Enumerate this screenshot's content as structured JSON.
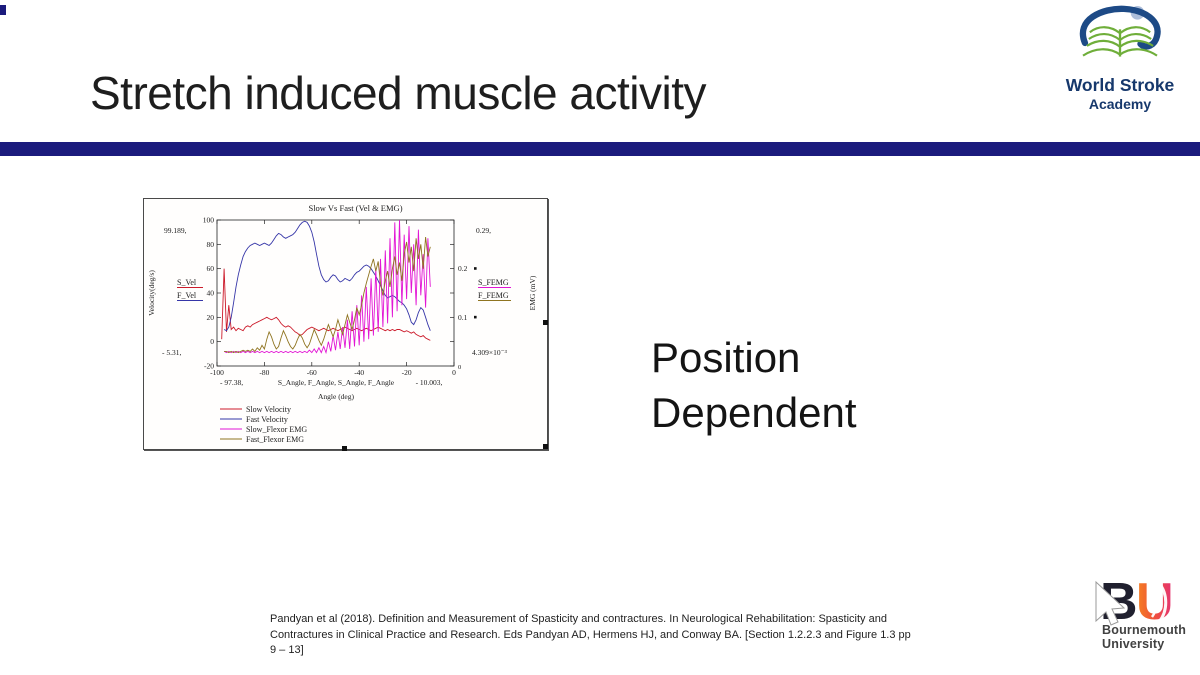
{
  "slide": {
    "title": "Stretch induced muscle activity",
    "body_line1": "Position",
    "body_line2": "Dependent",
    "citation_lines": [
      "Pandyan et al (2018). Definition and Measurement of Spasticity and contractures. In Neurological Rehabilitation: Spasticity and",
      "Contractures in Clinical Practice and Research. Eds Pandyan AD, Hermens HJ, and Conway BA. [Section 1.2.2.3 and Figure 1.3 pp",
      "9 – 13]"
    ],
    "accent_bar_color": "#1b1b7d"
  },
  "logos": {
    "world_stroke_academy": {
      "line1": "World Stroke",
      "line2": "Academy",
      "navy": "#16386c",
      "green": "#6fae3a"
    },
    "bournemouth": {
      "monogram_b": "B",
      "monogram_u": "U",
      "line1": "Bournemouth",
      "line2": "University"
    }
  },
  "chart_data": {
    "type": "line",
    "title": "Slow Vs Fast (Vel & EMG)",
    "xlabel": "Angle (deg)",
    "x_sublabel": "S_Angle, F_Angle, S_Angle, F_Angle",
    "x_annotations": [
      "- 97.38,",
      "- 10.003,"
    ],
    "ylabel_left": "Velocity(deg/s)",
    "ylabel_right": "EMG (mV)",
    "left_axis_traces": [
      "S_Vel",
      "F_Vel"
    ],
    "right_axis_traces": [
      "S_FEMG",
      "F_FEMG"
    ],
    "left_annotations": [
      "99.189,",
      "- 5.31,"
    ],
    "right_annotations": [
      "0.29,",
      "4.309×10⁻³"
    ],
    "xlim": [
      -100,
      0
    ],
    "ylim_left": [
      -20,
      100
    ],
    "x_ticks": [
      -100,
      -80,
      -60,
      -40,
      -20,
      0
    ],
    "y_ticks_left": [
      100,
      80,
      60,
      40,
      20,
      0,
      -20
    ],
    "y_ticks_right": [
      {
        "label": "0.2",
        "at_left_value": 60
      },
      {
        "label": "0.1",
        "at_left_value": 20
      },
      {
        "label": "0",
        "at_left_value": -20
      }
    ],
    "legend": [
      {
        "label": "Slow Velocity",
        "color": "#cc1b2b"
      },
      {
        "label": "Fast Velocity",
        "color": "#3636a8"
      },
      {
        "label": "Slow_Flexor EMG",
        "color": "#e215d5"
      },
      {
        "label": "Fast_Flexor EMG",
        "color": "#8f7420"
      }
    ],
    "series": [
      {
        "name": "Slow Velocity",
        "axis": "left",
        "color": "#cc1b2b",
        "x0": -98,
        "dx": 1,
        "y": [
          2,
          60,
          8,
          30,
          10,
          12,
          9,
          11,
          10,
          9,
          12,
          13,
          12,
          14,
          15,
          16,
          17,
          18,
          19,
          20,
          19,
          18,
          19,
          20,
          18,
          15,
          13,
          12,
          13,
          12,
          10,
          8,
          7,
          5,
          6,
          8,
          10,
          11,
          12,
          11,
          10,
          9,
          10,
          11,
          10,
          9,
          10,
          11,
          10,
          9,
          10,
          11,
          12,
          11,
          10,
          9,
          10,
          11,
          10,
          9,
          10,
          11,
          10,
          9,
          10,
          11,
          12,
          11,
          10,
          9,
          10,
          9,
          10,
          9,
          10,
          10,
          9,
          8,
          9,
          8,
          7,
          8,
          6,
          5,
          4,
          5,
          3,
          2,
          1
        ]
      },
      {
        "name": "Fast Velocity",
        "axis": "left",
        "color": "#3636a8",
        "x0": -97,
        "dx": 1,
        "y": [
          10,
          9,
          12,
          20,
          32,
          45,
          55,
          63,
          70,
          74,
          77,
          79,
          80,
          81,
          80,
          79,
          80,
          81,
          80,
          79,
          81,
          84,
          87,
          89,
          88,
          86,
          85,
          86,
          87,
          88,
          90,
          93,
          96,
          98,
          99,
          98,
          95,
          90,
          82,
          72,
          62,
          55,
          51,
          49,
          50,
          53,
          55,
          54,
          51,
          49,
          50,
          52,
          51,
          50,
          52,
          55,
          57,
          58,
          60,
          62,
          63,
          62,
          60,
          57,
          54,
          50,
          46,
          42,
          38,
          36,
          37,
          38,
          37,
          35,
          33,
          32,
          30,
          27,
          22,
          16,
          14,
          18,
          24,
          28,
          26,
          20,
          14,
          9
        ]
      },
      {
        "name": "Slow_Flexor EMG",
        "axis": "right",
        "color": "#e215d5",
        "x0": -97,
        "dx": 1,
        "y": [
          -8,
          -9,
          -8,
          -9,
          -8,
          -9,
          -8,
          -9,
          -8,
          -9,
          -8,
          -9,
          -8,
          -9,
          -8,
          -9,
          -8,
          -9,
          -8,
          -9,
          -8,
          -9,
          -8,
          -9,
          -8,
          -9,
          -8,
          -9,
          -8,
          -9,
          -8,
          -9,
          -8,
          -9,
          -8,
          -9,
          -7,
          -9,
          -6,
          -9,
          -5,
          -9,
          -4,
          -9,
          0,
          -8,
          5,
          -7,
          8,
          -6,
          12,
          -5,
          18,
          -6,
          25,
          -4,
          30,
          -3,
          38,
          0,
          45,
          2,
          52,
          5,
          60,
          8,
          68,
          12,
          75,
          15,
          85,
          20,
          98,
          25,
          100,
          30,
          88,
          35,
          95,
          40,
          80,
          30,
          92,
          38,
          72,
          28,
          85,
          45
        ]
      },
      {
        "name": "Fast_Flexor EMG",
        "axis": "right",
        "color": "#8f7420",
        "x0": -97,
        "dx": 1,
        "y": [
          -8,
          -8,
          -9,
          -8,
          -9,
          -8,
          -9,
          -8,
          -7,
          -8,
          -7,
          -8,
          -6,
          -8,
          -5,
          -7,
          -3,
          -6,
          2,
          8,
          4,
          -2,
          -6,
          -4,
          3,
          9,
          5,
          0,
          -4,
          -6,
          -3,
          2,
          6,
          3,
          -2,
          -5,
          -2,
          4,
          10,
          6,
          1,
          -3,
          2,
          8,
          14,
          9,
          4,
          10,
          18,
          12,
          6,
          14,
          22,
          16,
          10,
          18,
          28,
          22,
          30,
          40,
          48,
          55,
          62,
          68,
          58,
          66,
          48,
          38,
          50,
          58,
          45,
          60,
          70,
          55,
          65,
          50,
          72,
          82,
          65,
          78,
          58,
          85,
          68,
          80,
          60,
          86,
          70,
          78
        ]
      }
    ],
    "note": "EMG series plotted against right axis; right-axis ticks aligned to left-axis display values per original figure. Left annotations are trace max/min (velocity), right annotations are EMG max/min.",
    "legend_position": "bottom-left",
    "grid": false
  }
}
